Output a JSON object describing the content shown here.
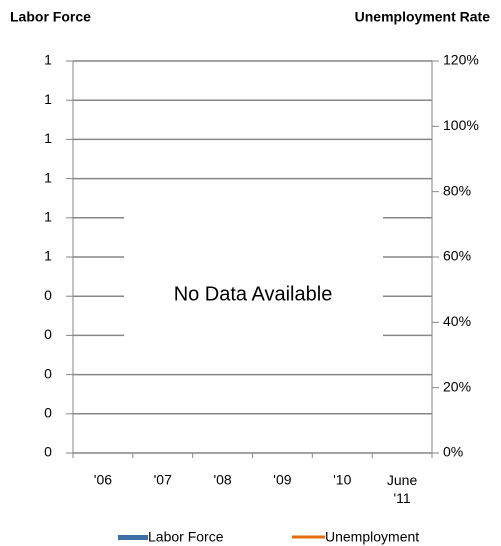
{
  "chart_data": {
    "type": "bar",
    "y_title": "Labor Force",
    "y2_title": "Unemployment Rate",
    "annotation": "No Data Available",
    "categories": [
      "'06",
      "'07",
      "'08",
      "'09",
      "'10",
      "June\n'11"
    ],
    "series": [
      {
        "name": "Labor Force",
        "color": "#3f6fa6",
        "values": [
          null,
          null,
          null,
          null,
          null,
          null
        ]
      },
      {
        "name": "Unemployment",
        "color": "#e46c0a",
        "axis": "y2",
        "values": [
          null,
          null,
          null,
          null,
          null,
          null
        ]
      }
    ],
    "ylim": [
      0,
      1
    ],
    "yticks": [
      {
        "value": 0,
        "label": "0"
      },
      {
        "value": 0.1,
        "label": "0"
      },
      {
        "value": 0.2,
        "label": "0"
      },
      {
        "value": 0.3,
        "label": "0"
      },
      {
        "value": 0.4,
        "label": "0"
      },
      {
        "value": 0.5,
        "label": "1"
      },
      {
        "value": 0.6,
        "label": "1"
      },
      {
        "value": 0.7,
        "label": "1"
      },
      {
        "value": 0.8,
        "label": "1"
      },
      {
        "value": 0.9,
        "label": "1"
      },
      {
        "value": 1,
        "label": "1"
      }
    ],
    "y2lim": [
      0,
      120
    ],
    "y2ticks": [
      {
        "value": 0,
        "label": "0%"
      },
      {
        "value": 20,
        "label": "20%"
      },
      {
        "value": 40,
        "label": "40%"
      },
      {
        "value": 60,
        "label": "60%"
      },
      {
        "value": 80,
        "label": "80%"
      },
      {
        "value": 100,
        "label": "100%"
      },
      {
        "value": 120,
        "label": "120%"
      }
    ],
    "grid": true
  }
}
